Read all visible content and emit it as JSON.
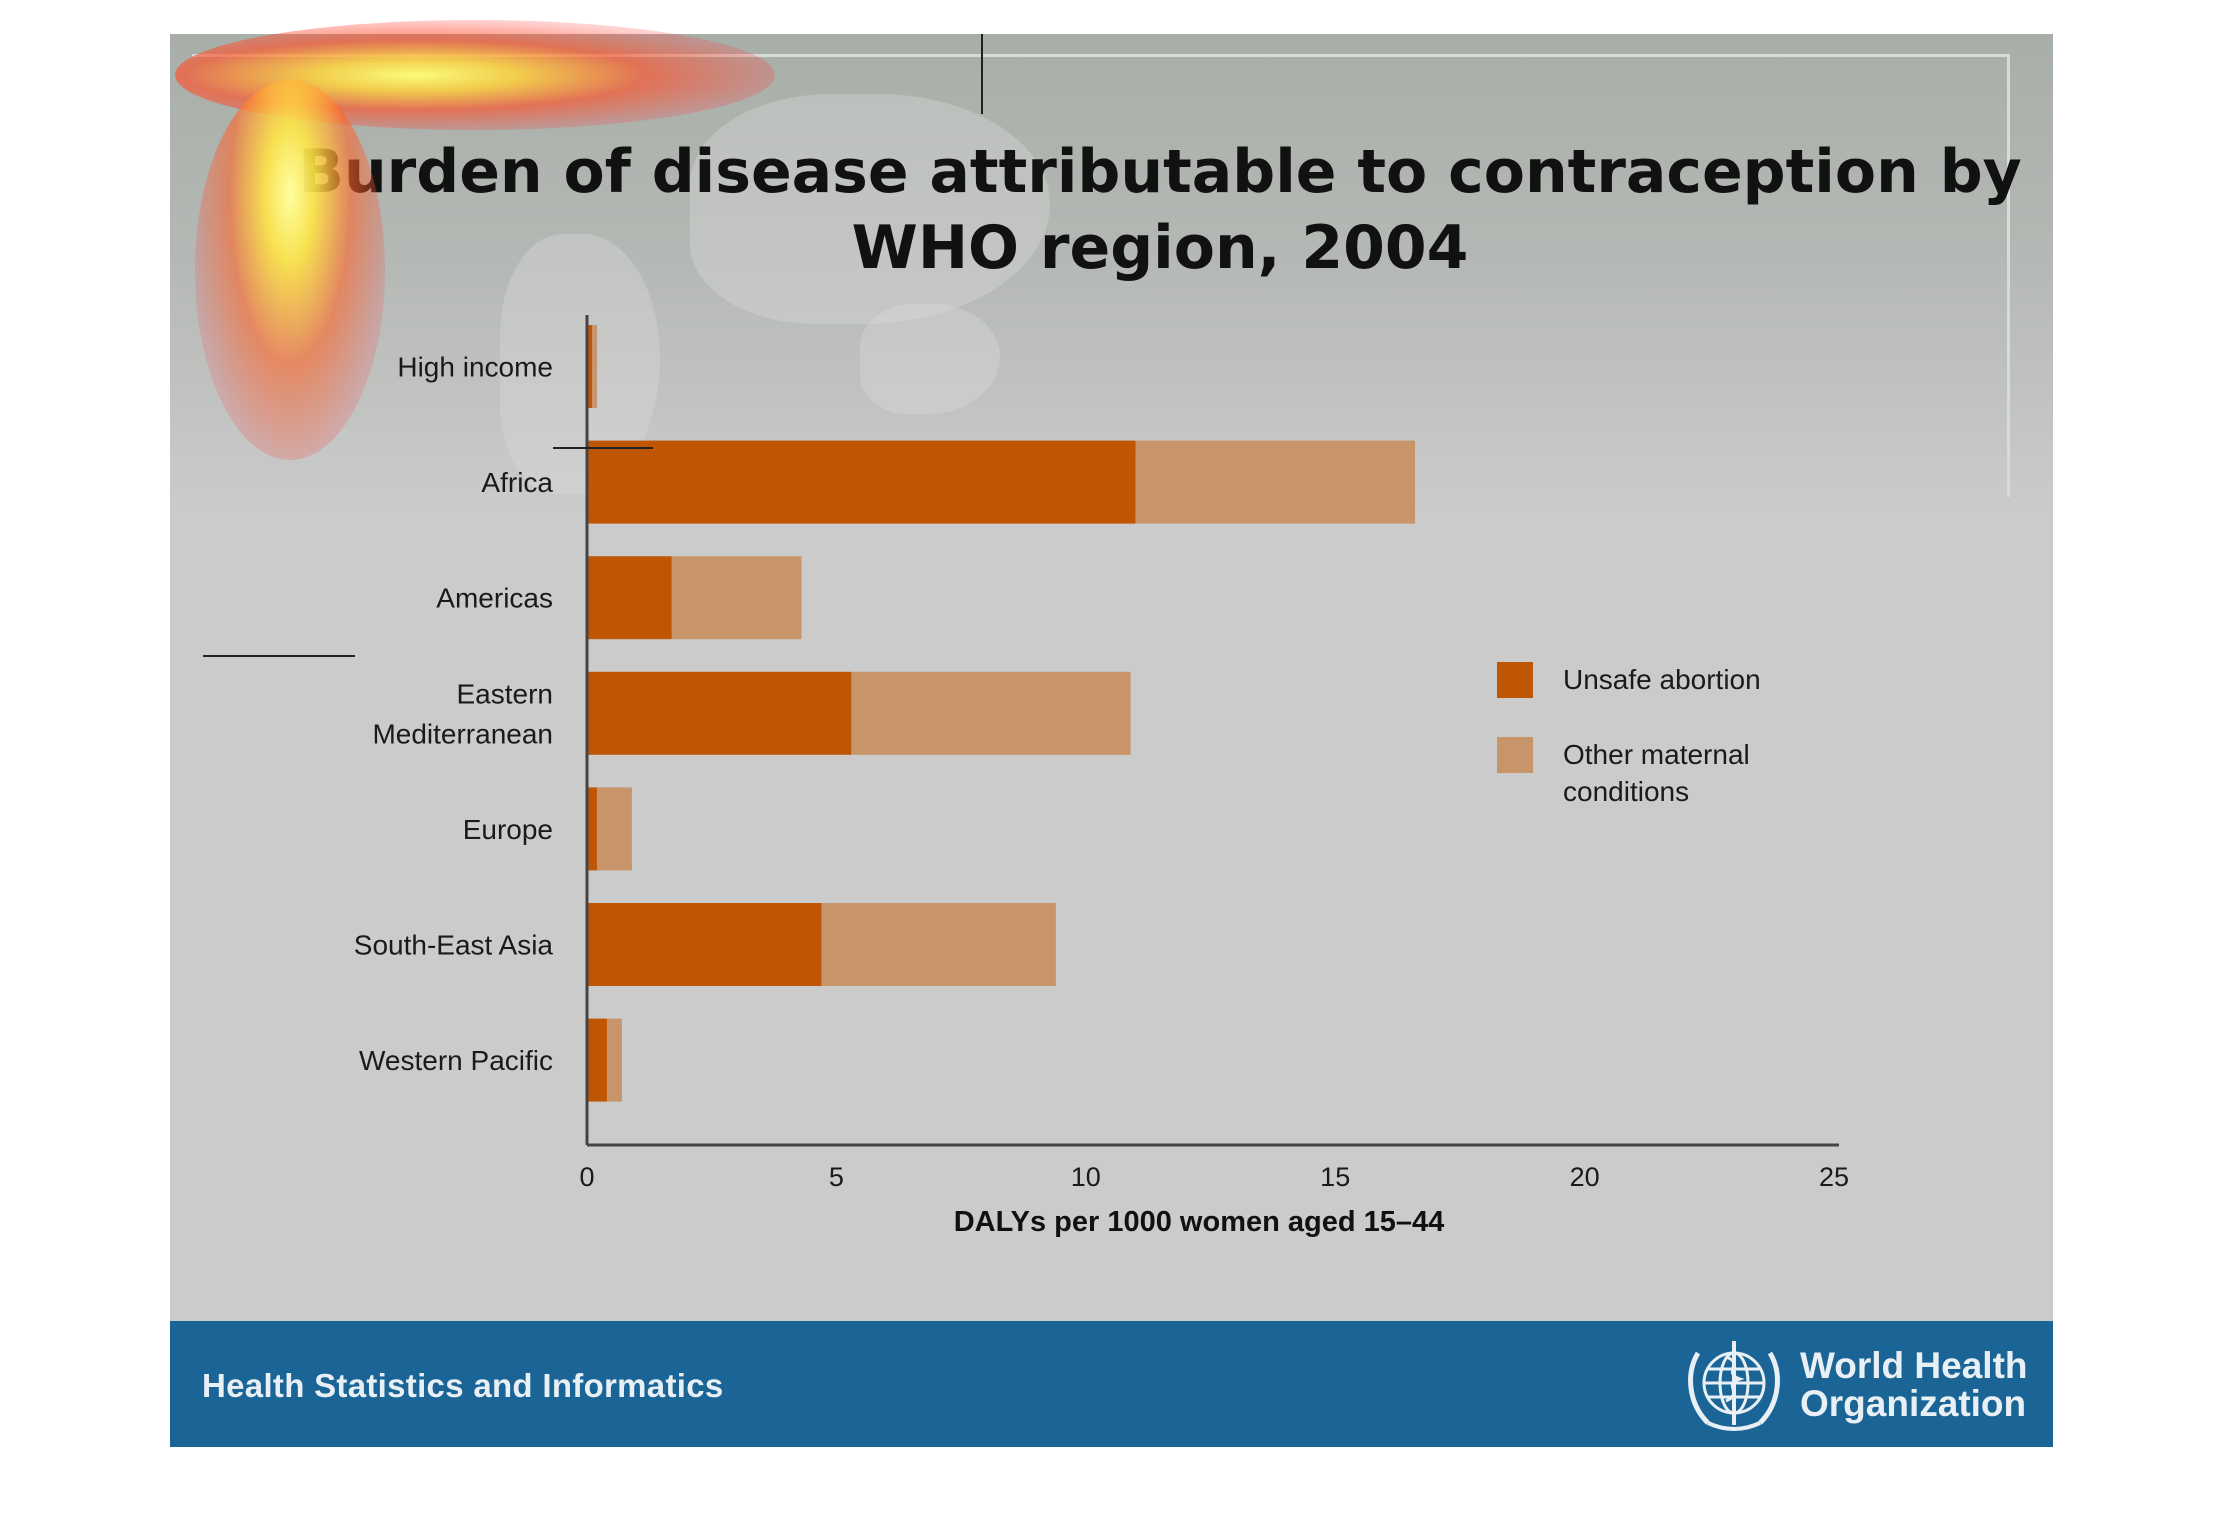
{
  "slide": {
    "title_line1": "Burden of disease attributable to contraception by",
    "title_line2": "WHO region, 2004"
  },
  "footer": {
    "text": "Health Statistics and Informatics",
    "org_line1": "World Health",
    "org_line2": "Organization"
  },
  "colors": {
    "unsafe_abortion": "#bf5604",
    "other_maternal": "#c8956a",
    "footer_bg": "#1a6596",
    "axis": "#444444"
  },
  "chart_data": {
    "type": "bar",
    "orientation": "horizontal",
    "stacked": true,
    "categories": [
      "High income",
      "Africa",
      "Americas",
      "Eastern Mediterranean",
      "Europe",
      "South-East Asia",
      "Western Pacific"
    ],
    "category_label_lines": [
      [
        "High income"
      ],
      [
        "Africa"
      ],
      [
        "Americas"
      ],
      [
        "Eastern",
        "Mediterranean"
      ],
      [
        "Europe"
      ],
      [
        "South-East Asia"
      ],
      [
        "Western Pacific"
      ]
    ],
    "series": [
      {
        "name": "Unsafe abortion",
        "color": "#bf5604",
        "values": [
          0.1,
          11.0,
          1.7,
          5.3,
          0.2,
          4.7,
          0.4
        ]
      },
      {
        "name": "Other maternal conditions",
        "color": "#c8956a",
        "values": [
          0.1,
          5.6,
          2.6,
          5.6,
          0.7,
          4.7,
          0.3
        ]
      }
    ],
    "legend_labels": [
      [
        "Unsafe abortion"
      ],
      [
        "Other maternal",
        "conditions"
      ]
    ],
    "xlabel": "DALYs per 1000 women aged 15–44",
    "ylabel": "",
    "xlim": [
      0,
      25
    ],
    "xticks": [
      0,
      5,
      10,
      15,
      20,
      25
    ],
    "grid": false,
    "legend_position": "right"
  }
}
